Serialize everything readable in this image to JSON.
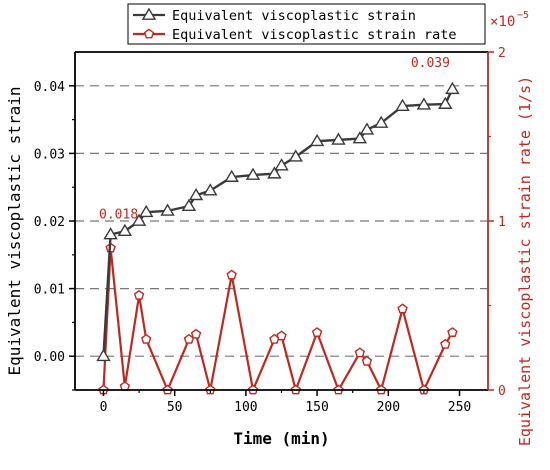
{
  "chart_data": {
    "type": "line",
    "x": [
      0,
      5,
      15,
      25,
      30,
      45,
      60,
      65,
      75,
      90,
      105,
      120,
      125,
      135,
      150,
      165,
      180,
      185,
      195,
      210,
      225,
      240,
      245
    ],
    "series": [
      {
        "name": "Equivalent viscoplastic strain",
        "axis": "left",
        "color": "#3a3a3a",
        "marker": "triangle",
        "values": [
          0.0,
          0.018,
          0.0185,
          0.02,
          0.0213,
          0.0215,
          0.0222,
          0.0238,
          0.0245,
          0.0265,
          0.0268,
          0.027,
          0.0282,
          0.0295,
          0.0318,
          0.032,
          0.0322,
          0.0335,
          0.0345,
          0.037,
          0.0372,
          0.0373,
          0.0395
        ]
      },
      {
        "name": "Equivalent viscoplastic strain rate",
        "axis": "right",
        "color": "#c0281f",
        "marker": "pentagon",
        "values": [
          0.0,
          0.84,
          0.02,
          0.56,
          0.3,
          0.0,
          0.3,
          0.33,
          0.0,
          0.68,
          0.0,
          0.3,
          0.32,
          0.0,
          0.34,
          0.0,
          0.22,
          0.17,
          0.0,
          0.48,
          0.0,
          0.27,
          0.34
        ]
      }
    ],
    "xlabel": "Time (min)",
    "ylabel": "Equivalent viscoplastic strain",
    "y2label": "Equivalent viscoplastic strain rate (1/s)",
    "y2_multiplier": "×10",
    "y2_multiplier_exp": "−5",
    "xlim": [
      -20,
      270
    ],
    "ylim": [
      -0.005,
      0.045
    ],
    "y2lim": [
      0,
      2
    ],
    "xticks": [
      "0",
      "50",
      "100",
      "150",
      "200",
      "250"
    ],
    "yticks": [
      "0.00",
      "0.01",
      "0.02",
      "0.03",
      "0.04"
    ],
    "y2ticks": [
      "0",
      "1",
      "2"
    ],
    "grid": "horizontal dashed",
    "legend": "top-center",
    "annotations": [
      {
        "x": 5,
        "y": 0.018,
        "text": "0.018"
      },
      {
        "x": 245,
        "y": 0.0395,
        "text": "0.039"
      }
    ]
  }
}
